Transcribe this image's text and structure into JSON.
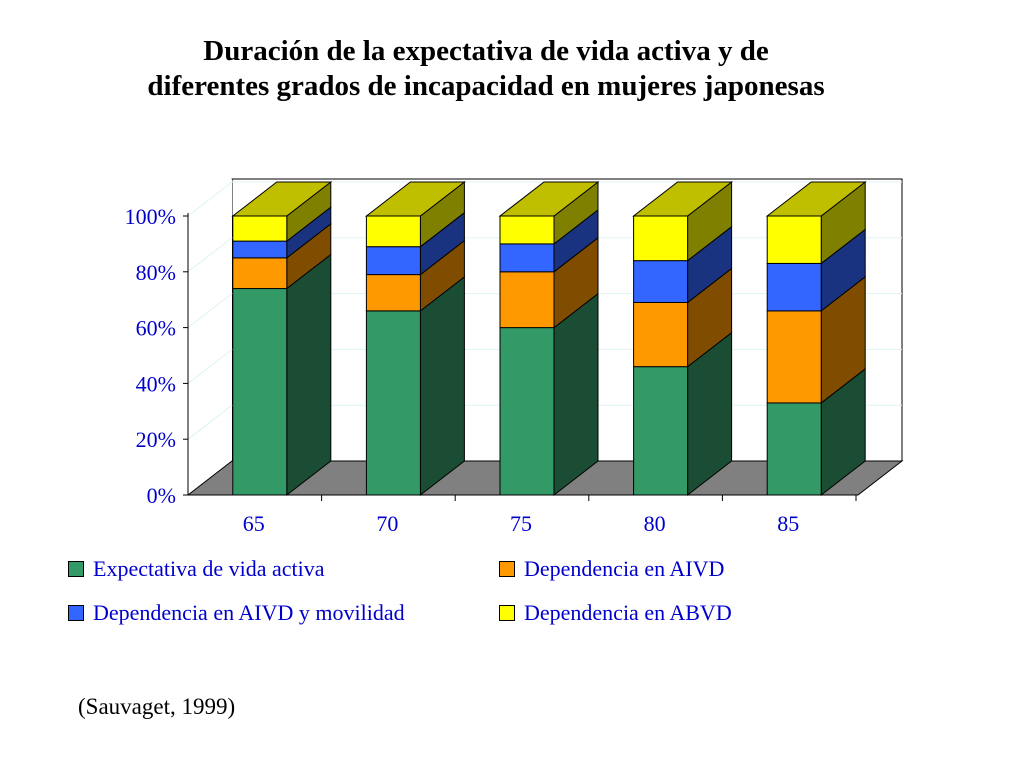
{
  "title_lines": [
    "Duración de la expectativa de vida activa y de",
    "diferentes grados de incapacidad en mujeres japonesas"
  ],
  "source": "(Sauvaget, 1999)",
  "colors": {
    "active": "#339966",
    "aivd": "#ff9900",
    "aivd_mov": "#3366ff",
    "abvd": "#ffff00",
    "floor": "#808080",
    "axis_text": "#0000cc"
  },
  "chart_data": {
    "type": "bar",
    "stacked": true,
    "three_d": true,
    "title": "",
    "xlabel": "",
    "ylabel": "",
    "categories": [
      "65",
      "70",
      "75",
      "80",
      "85"
    ],
    "ylim": [
      0,
      100
    ],
    "y_ticks": [
      "0%",
      "20%",
      "40%",
      "60%",
      "80%",
      "100%"
    ],
    "grid": true,
    "legend_position": "bottom",
    "series": [
      {
        "name": "Expectativa de vida activa",
        "color": "#339966",
        "values": [
          74,
          66,
          60,
          46,
          33
        ]
      },
      {
        "name": "Dependencia en AIVD",
        "color": "#ff9900",
        "values": [
          11,
          13,
          20,
          23,
          33
        ]
      },
      {
        "name": "Dependencia en AIVD y movilidad",
        "color": "#3366ff",
        "values": [
          6,
          10,
          10,
          15,
          17
        ]
      },
      {
        "name": "Dependencia en ABVD",
        "color": "#ffff00",
        "values": [
          9,
          11,
          10,
          16,
          17
        ]
      }
    ]
  }
}
